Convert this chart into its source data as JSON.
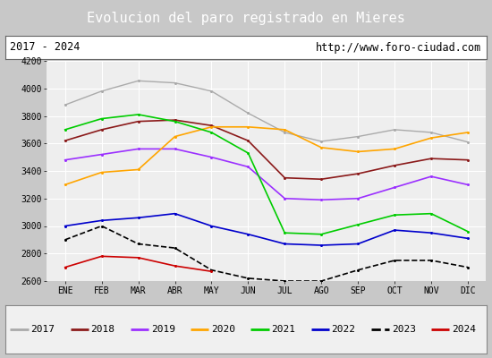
{
  "title": "Evolucion del paro registrado en Mieres",
  "subtitle_left": "2017 - 2024",
  "subtitle_right": "http://www.foro-ciudad.com",
  "months": [
    "ENE",
    "FEB",
    "MAR",
    "ABR",
    "MAY",
    "JUN",
    "JUL",
    "AGO",
    "SEP",
    "OCT",
    "NOV",
    "DIC"
  ],
  "ylim": [
    2600,
    4200
  ],
  "yticks": [
    2600,
    2800,
    3000,
    3200,
    3400,
    3600,
    3800,
    4000,
    4200
  ],
  "series": [
    {
      "year": "2017",
      "color": "#aaaaaa",
      "linestyle": "solid",
      "lw": 1.0,
      "data": [
        3880,
        3980,
        4055,
        4040,
        3980,
        3820,
        3680,
        3615,
        3650,
        3700,
        3680,
        3610
      ]
    },
    {
      "year": "2018",
      "color": "#8b1a1a",
      "linestyle": "solid",
      "lw": 1.2,
      "data": [
        3620,
        3700,
        3760,
        3770,
        3730,
        3620,
        3350,
        3340,
        3380,
        3440,
        3490,
        3480
      ]
    },
    {
      "year": "2019",
      "color": "#9b30ff",
      "linestyle": "solid",
      "lw": 1.2,
      "data": [
        3480,
        3520,
        3560,
        3560,
        3500,
        3430,
        3200,
        3190,
        3200,
        3280,
        3360,
        3300
      ]
    },
    {
      "year": "2020",
      "color": "#ffa500",
      "linestyle": "solid",
      "lw": 1.2,
      "data": [
        3300,
        3390,
        3410,
        3650,
        3720,
        3720,
        3700,
        3570,
        3540,
        3560,
        3640,
        3680
      ]
    },
    {
      "year": "2021",
      "color": "#00cc00",
      "linestyle": "solid",
      "lw": 1.2,
      "data": [
        3700,
        3780,
        3810,
        3760,
        3680,
        3530,
        2950,
        2940,
        3010,
        3080,
        3090,
        2960
      ]
    },
    {
      "year": "2022",
      "color": "#0000cc",
      "linestyle": "solid",
      "lw": 1.2,
      "data": [
        3000,
        3040,
        3060,
        3090,
        3000,
        2940,
        2870,
        2860,
        2870,
        2970,
        2950,
        2910
      ]
    },
    {
      "year": "2023",
      "color": "#000000",
      "linestyle": "dashed",
      "lw": 1.2,
      "data": [
        2900,
        3000,
        2870,
        2840,
        2680,
        2620,
        2600,
        2600,
        2680,
        2750,
        2750,
        2700
      ]
    },
    {
      "year": "2024",
      "color": "#cc0000",
      "linestyle": "solid",
      "lw": 1.2,
      "data": [
        2700,
        2780,
        2770,
        2710,
        2670,
        null,
        null,
        null,
        null,
        null,
        null,
        null
      ]
    }
  ],
  "title_bg": "#5b9bd5",
  "title_fg": "#ffffff",
  "title_fontsize": 11,
  "sub_fg": "#000000",
  "sub_fontsize": 8.5,
  "outer_bg": "#c8c8c8",
  "plot_bg": "#eeeeee",
  "grid_color": "#ffffff",
  "tick_fontsize": 7,
  "legend_bg": "#f0f0f0",
  "legend_border": "#888888",
  "legend_fontsize": 8
}
